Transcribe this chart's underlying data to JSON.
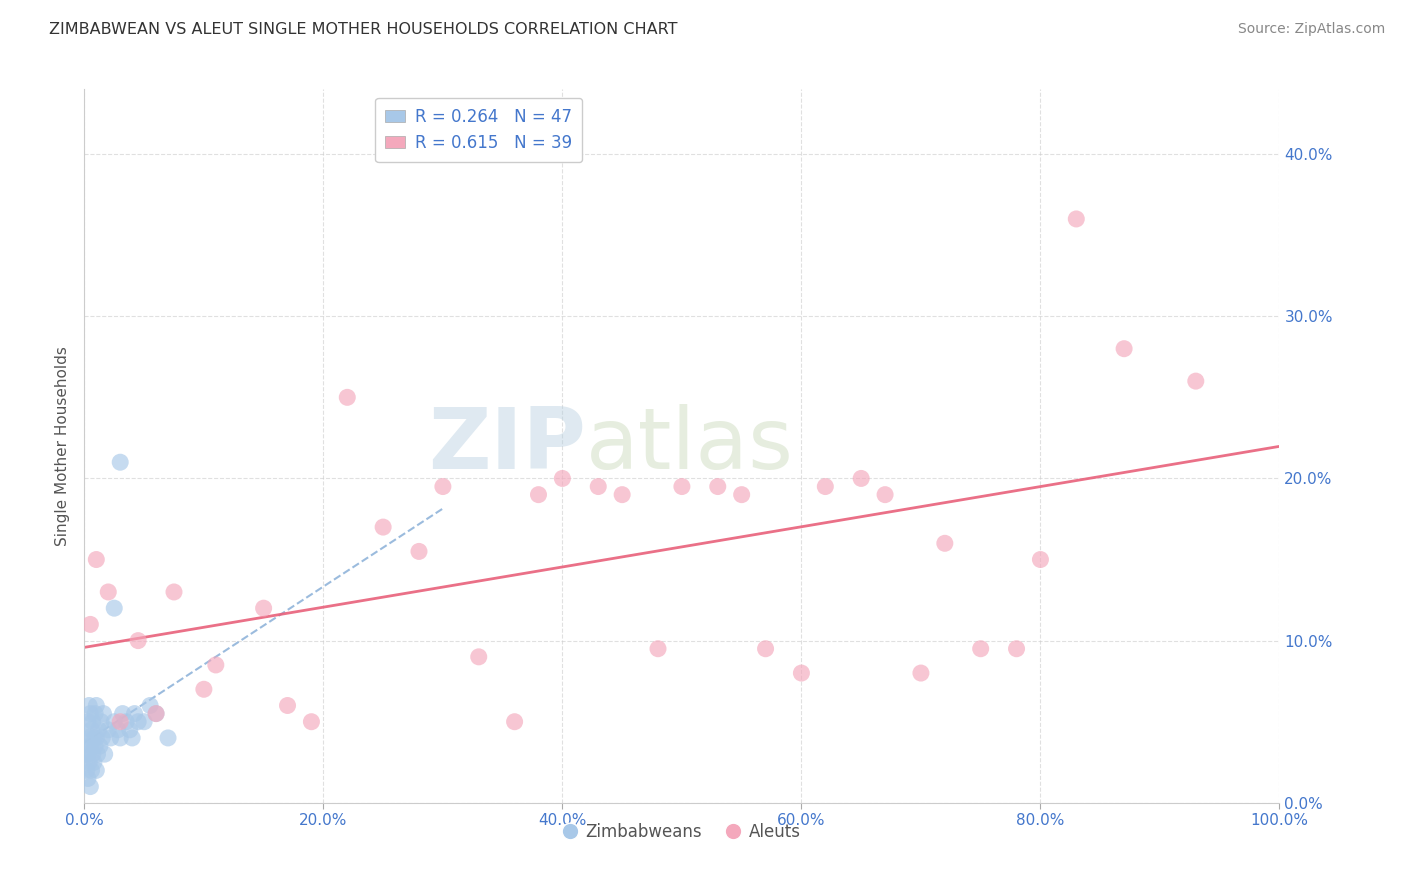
{
  "title": "ZIMBABWEAN VS ALEUT SINGLE MOTHER HOUSEHOLDS CORRELATION CHART",
  "source_text": "Source: ZipAtlas.com",
  "ylabel": "Single Mother Households",
  "xlabel": "",
  "watermark_zip": "ZIP",
  "watermark_atlas": "atlas",
  "xlim": [
    0.0,
    100.0
  ],
  "ylim": [
    0.0,
    44.0
  ],
  "yticks": [
    0.0,
    10.0,
    20.0,
    30.0,
    40.0
  ],
  "xticks": [
    0.0,
    20.0,
    40.0,
    60.0,
    80.0,
    100.0
  ],
  "xtick_labels": [
    "0.0%",
    "20.0%",
    "40.0%",
    "60.0%",
    "80.0%",
    "100.0%"
  ],
  "ytick_labels": [
    "0.0%",
    "10.0%",
    "20.0%",
    "30.0%",
    "40.0%"
  ],
  "zimbabweans_R": 0.264,
  "zimbabweans_N": 47,
  "aleuts_R": 0.615,
  "aleuts_N": 39,
  "zimbabwean_color": "#a8c8e8",
  "aleut_color": "#f4a8bc",
  "zimbabwean_line_color": "#8ab0d8",
  "aleut_line_color": "#e8607a",
  "background_color": "#ffffff",
  "title_color": "#333333",
  "axis_label_color": "#555555",
  "tick_color": "#4477cc",
  "grid_color": "#cccccc",
  "zimbabweans_x": [
    0.1,
    0.2,
    0.2,
    0.3,
    0.3,
    0.3,
    0.4,
    0.4,
    0.4,
    0.5,
    0.5,
    0.5,
    0.6,
    0.6,
    0.7,
    0.7,
    0.8,
    0.8,
    0.9,
    0.9,
    1.0,
    1.0,
    1.0,
    1.1,
    1.2,
    1.3,
    1.4,
    1.5,
    1.6,
    1.7,
    2.0,
    2.2,
    2.5,
    2.8,
    3.0,
    3.2,
    3.5,
    3.8,
    4.0,
    4.2,
    4.5,
    5.0,
    5.5,
    6.0,
    7.0,
    3.0,
    2.5
  ],
  "zimbabweans_y": [
    3.0,
    2.0,
    4.0,
    1.5,
    3.0,
    5.0,
    2.5,
    4.0,
    6.0,
    1.0,
    3.5,
    5.5,
    2.0,
    4.5,
    3.0,
    5.0,
    2.5,
    4.0,
    3.5,
    5.5,
    2.0,
    4.0,
    6.0,
    3.0,
    4.5,
    3.5,
    5.0,
    4.0,
    5.5,
    3.0,
    4.5,
    4.0,
    5.0,
    4.5,
    4.0,
    5.5,
    5.0,
    4.5,
    4.0,
    5.5,
    5.0,
    5.0,
    6.0,
    5.5,
    4.0,
    21.0,
    12.0
  ],
  "aleuts_x": [
    0.5,
    1.0,
    2.0,
    3.0,
    4.5,
    6.0,
    7.5,
    10.0,
    11.0,
    15.0,
    17.0,
    19.0,
    22.0,
    25.0,
    28.0,
    30.0,
    33.0,
    36.0,
    38.0,
    40.0,
    43.0,
    45.0,
    48.0,
    50.0,
    53.0,
    55.0,
    57.0,
    60.0,
    62.0,
    65.0,
    67.0,
    70.0,
    72.0,
    75.0,
    78.0,
    80.0,
    83.0,
    87.0,
    93.0
  ],
  "aleuts_y": [
    11.0,
    15.0,
    13.0,
    5.0,
    10.0,
    5.5,
    13.0,
    7.0,
    8.5,
    12.0,
    6.0,
    5.0,
    25.0,
    17.0,
    15.5,
    19.5,
    9.0,
    5.0,
    19.0,
    20.0,
    19.5,
    19.0,
    9.5,
    19.5,
    19.5,
    19.0,
    9.5,
    8.0,
    19.5,
    20.0,
    19.0,
    8.0,
    16.0,
    9.5,
    9.5,
    15.0,
    36.0,
    28.0,
    26.0
  ]
}
